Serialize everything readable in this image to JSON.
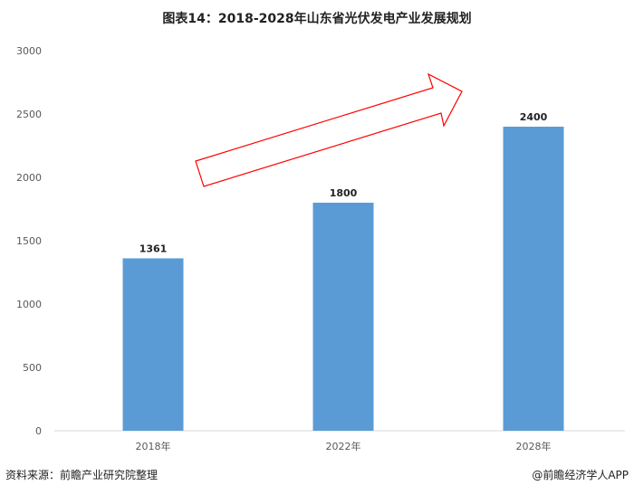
{
  "title": "图表14：2018-2028年山东省光伏发电产业发展规划",
  "source": "资料来源：前瞻产业研究院整理",
  "brand": "@前瞻经济学人APP",
  "chart_data": {
    "type": "bar",
    "title": "图表14：2018-2028年山东省光伏发电产业发展规划",
    "categories": [
      "2018年",
      "2022年",
      "2028年"
    ],
    "values": [
      1361,
      1800,
      2400
    ],
    "ylim": [
      0,
      3000
    ],
    "yticks": [
      0,
      500,
      1000,
      1500,
      2000,
      2500,
      3000
    ],
    "grid": false,
    "bar_color": "#5B9BD5",
    "annotation": "red outlined upward trend arrow"
  }
}
